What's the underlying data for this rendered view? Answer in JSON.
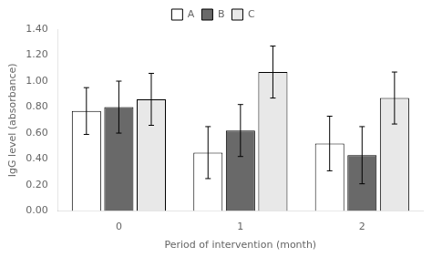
{
  "chart_data": {
    "type": "bar",
    "xlabel": "Period of intervention (month)",
    "ylabel": "IgG level (absorbance)",
    "categories": [
      "0",
      "1",
      "2"
    ],
    "series": [
      {
        "name": "A",
        "color": "#ffffff",
        "values": [
          0.77,
          0.45,
          0.52
        ],
        "errors": [
          0.18,
          0.2,
          0.21
        ]
      },
      {
        "name": "B",
        "color": "#696969",
        "values": [
          0.8,
          0.62,
          0.43
        ],
        "errors": [
          0.2,
          0.2,
          0.22
        ]
      },
      {
        "name": "C",
        "color": "#e8e8e8",
        "values": [
          0.86,
          1.07,
          0.87
        ],
        "errors": [
          0.2,
          0.2,
          0.2
        ]
      }
    ],
    "ylim": [
      0.0,
      1.4
    ],
    "yticks": [
      {
        "value": 0.0,
        "label": "0.00"
      },
      {
        "value": 0.2,
        "label": "0.20"
      },
      {
        "value": 0.4,
        "label": "0.40"
      },
      {
        "value": 0.6,
        "label": "0.60"
      },
      {
        "value": 0.8,
        "label": "0.80"
      },
      {
        "value": 1.0,
        "label": "1.00"
      },
      {
        "value": 1.2,
        "label": "1.20"
      },
      {
        "value": 1.4,
        "label": "1.40"
      }
    ],
    "grid": false,
    "legend": "top"
  }
}
